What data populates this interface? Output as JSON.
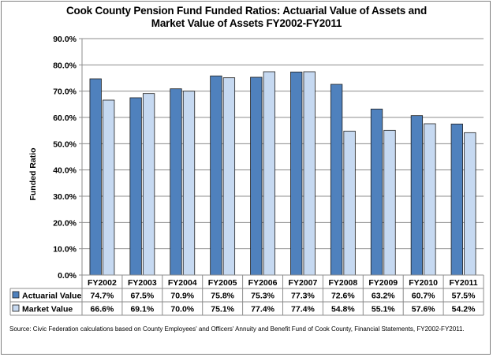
{
  "chart_data": {
    "type": "bar",
    "title": "Cook County Pension Fund Funded Ratios: Actuarial Value of Assets and Market Value of Assets FY2002-FY2011",
    "title_lines": [
      "Cook County Pension Fund Funded Ratios: Actuarial Value of Assets and",
      "Market Value of Assets FY2002-FY2011"
    ],
    "ylabel": "Funded Ratio",
    "xlabel": "",
    "ylim": [
      0,
      90
    ],
    "yticks": [
      "0.0%",
      "10.0%",
      "20.0%",
      "30.0%",
      "40.0%",
      "50.0%",
      "60.0%",
      "70.0%",
      "80.0%",
      "90.0%"
    ],
    "grid": true,
    "legend": "data-table-left",
    "categories": [
      "FY2002",
      "FY2003",
      "FY2004",
      "FY2005",
      "FY2006",
      "FY2007",
      "FY2008",
      "FY2009",
      "FY2010",
      "FY2011"
    ],
    "series": [
      {
        "name": "Actuarial Value",
        "color": "#4f81bd",
        "values": [
          74.7,
          67.5,
          70.9,
          75.8,
          75.3,
          77.3,
          72.6,
          63.2,
          60.7,
          57.5
        ],
        "labels": [
          "74.7%",
          "67.5%",
          "70.9%",
          "75.8%",
          "75.3%",
          "77.3%",
          "72.6%",
          "63.2%",
          "60.7%",
          "57.5%"
        ]
      },
      {
        "name": "Market Value",
        "color": "#c6d9f1",
        "values": [
          66.6,
          69.1,
          70.0,
          75.1,
          77.4,
          77.4,
          54.8,
          55.1,
          57.6,
          54.2
        ],
        "labels": [
          "66.6%",
          "69.1%",
          "70.0%",
          "75.1%",
          "77.4%",
          "77.4%",
          "54.8%",
          "55.1%",
          "57.6%",
          "54.2%"
        ]
      }
    ],
    "source": "Source: Civic Federation calculations based on County Employees' and Officers' Annuity and Benefit Fund of Cook County, Financial Statements, FY2002-FY2011."
  }
}
